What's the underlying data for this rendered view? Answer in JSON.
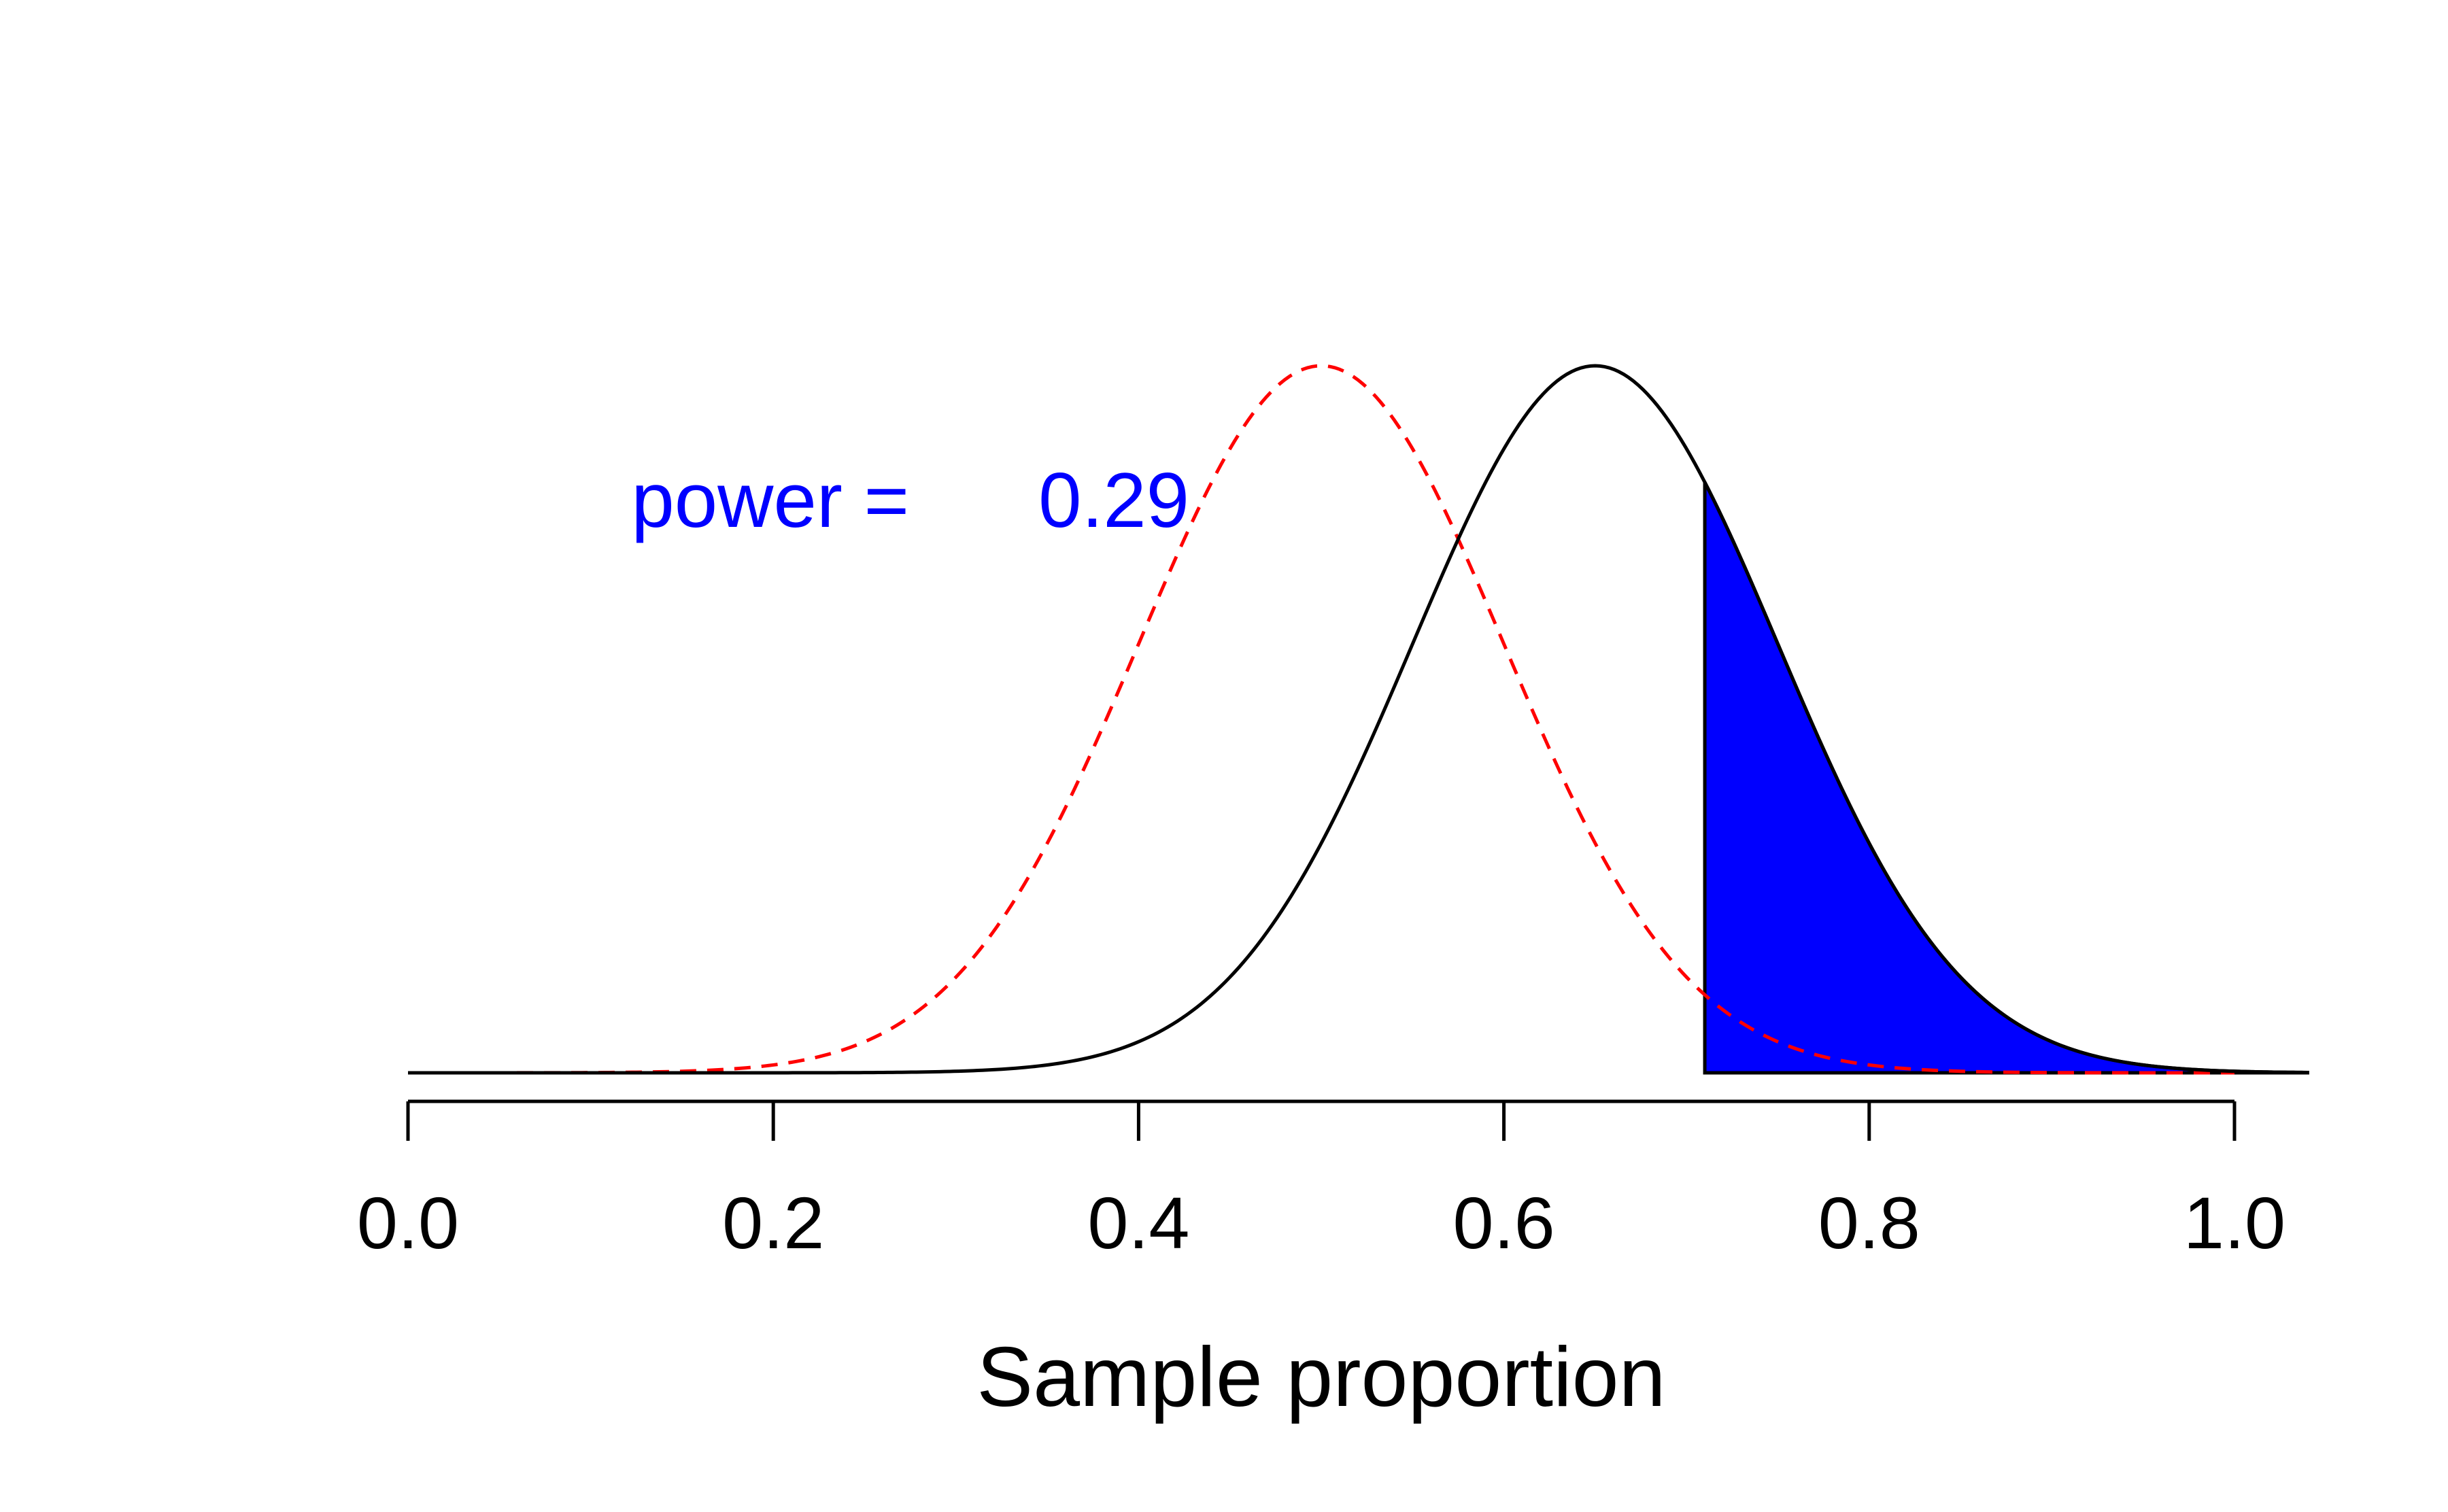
{
  "chart_data": {
    "type": "area",
    "title": "",
    "xlabel": "Sample proportion",
    "ylabel": "",
    "xlim": [
      0.0,
      1.04
    ],
    "x_ticks": [
      "0.0",
      "0.2",
      "0.4",
      "0.6",
      "0.8",
      "1.0"
    ],
    "x_tick_values": [
      0.0,
      0.2,
      0.4,
      0.6,
      0.8,
      1.0
    ],
    "grid": false,
    "series": [
      {
        "distribution": "normal",
        "mean": 0.5,
        "sd": 0.1,
        "line_style": "dashed",
        "color": "#ff0000"
      },
      {
        "distribution": "normal",
        "mean": 0.65,
        "sd": 0.1,
        "line_style": "solid",
        "color": "#000000"
      }
    ],
    "shaded_region": {
      "from": 0.71,
      "to": 1.04,
      "under_series": 1,
      "color": "#0000ff"
    },
    "annotation": {
      "label": "power = ",
      "value": "0.29",
      "color": "#0000ff"
    }
  }
}
